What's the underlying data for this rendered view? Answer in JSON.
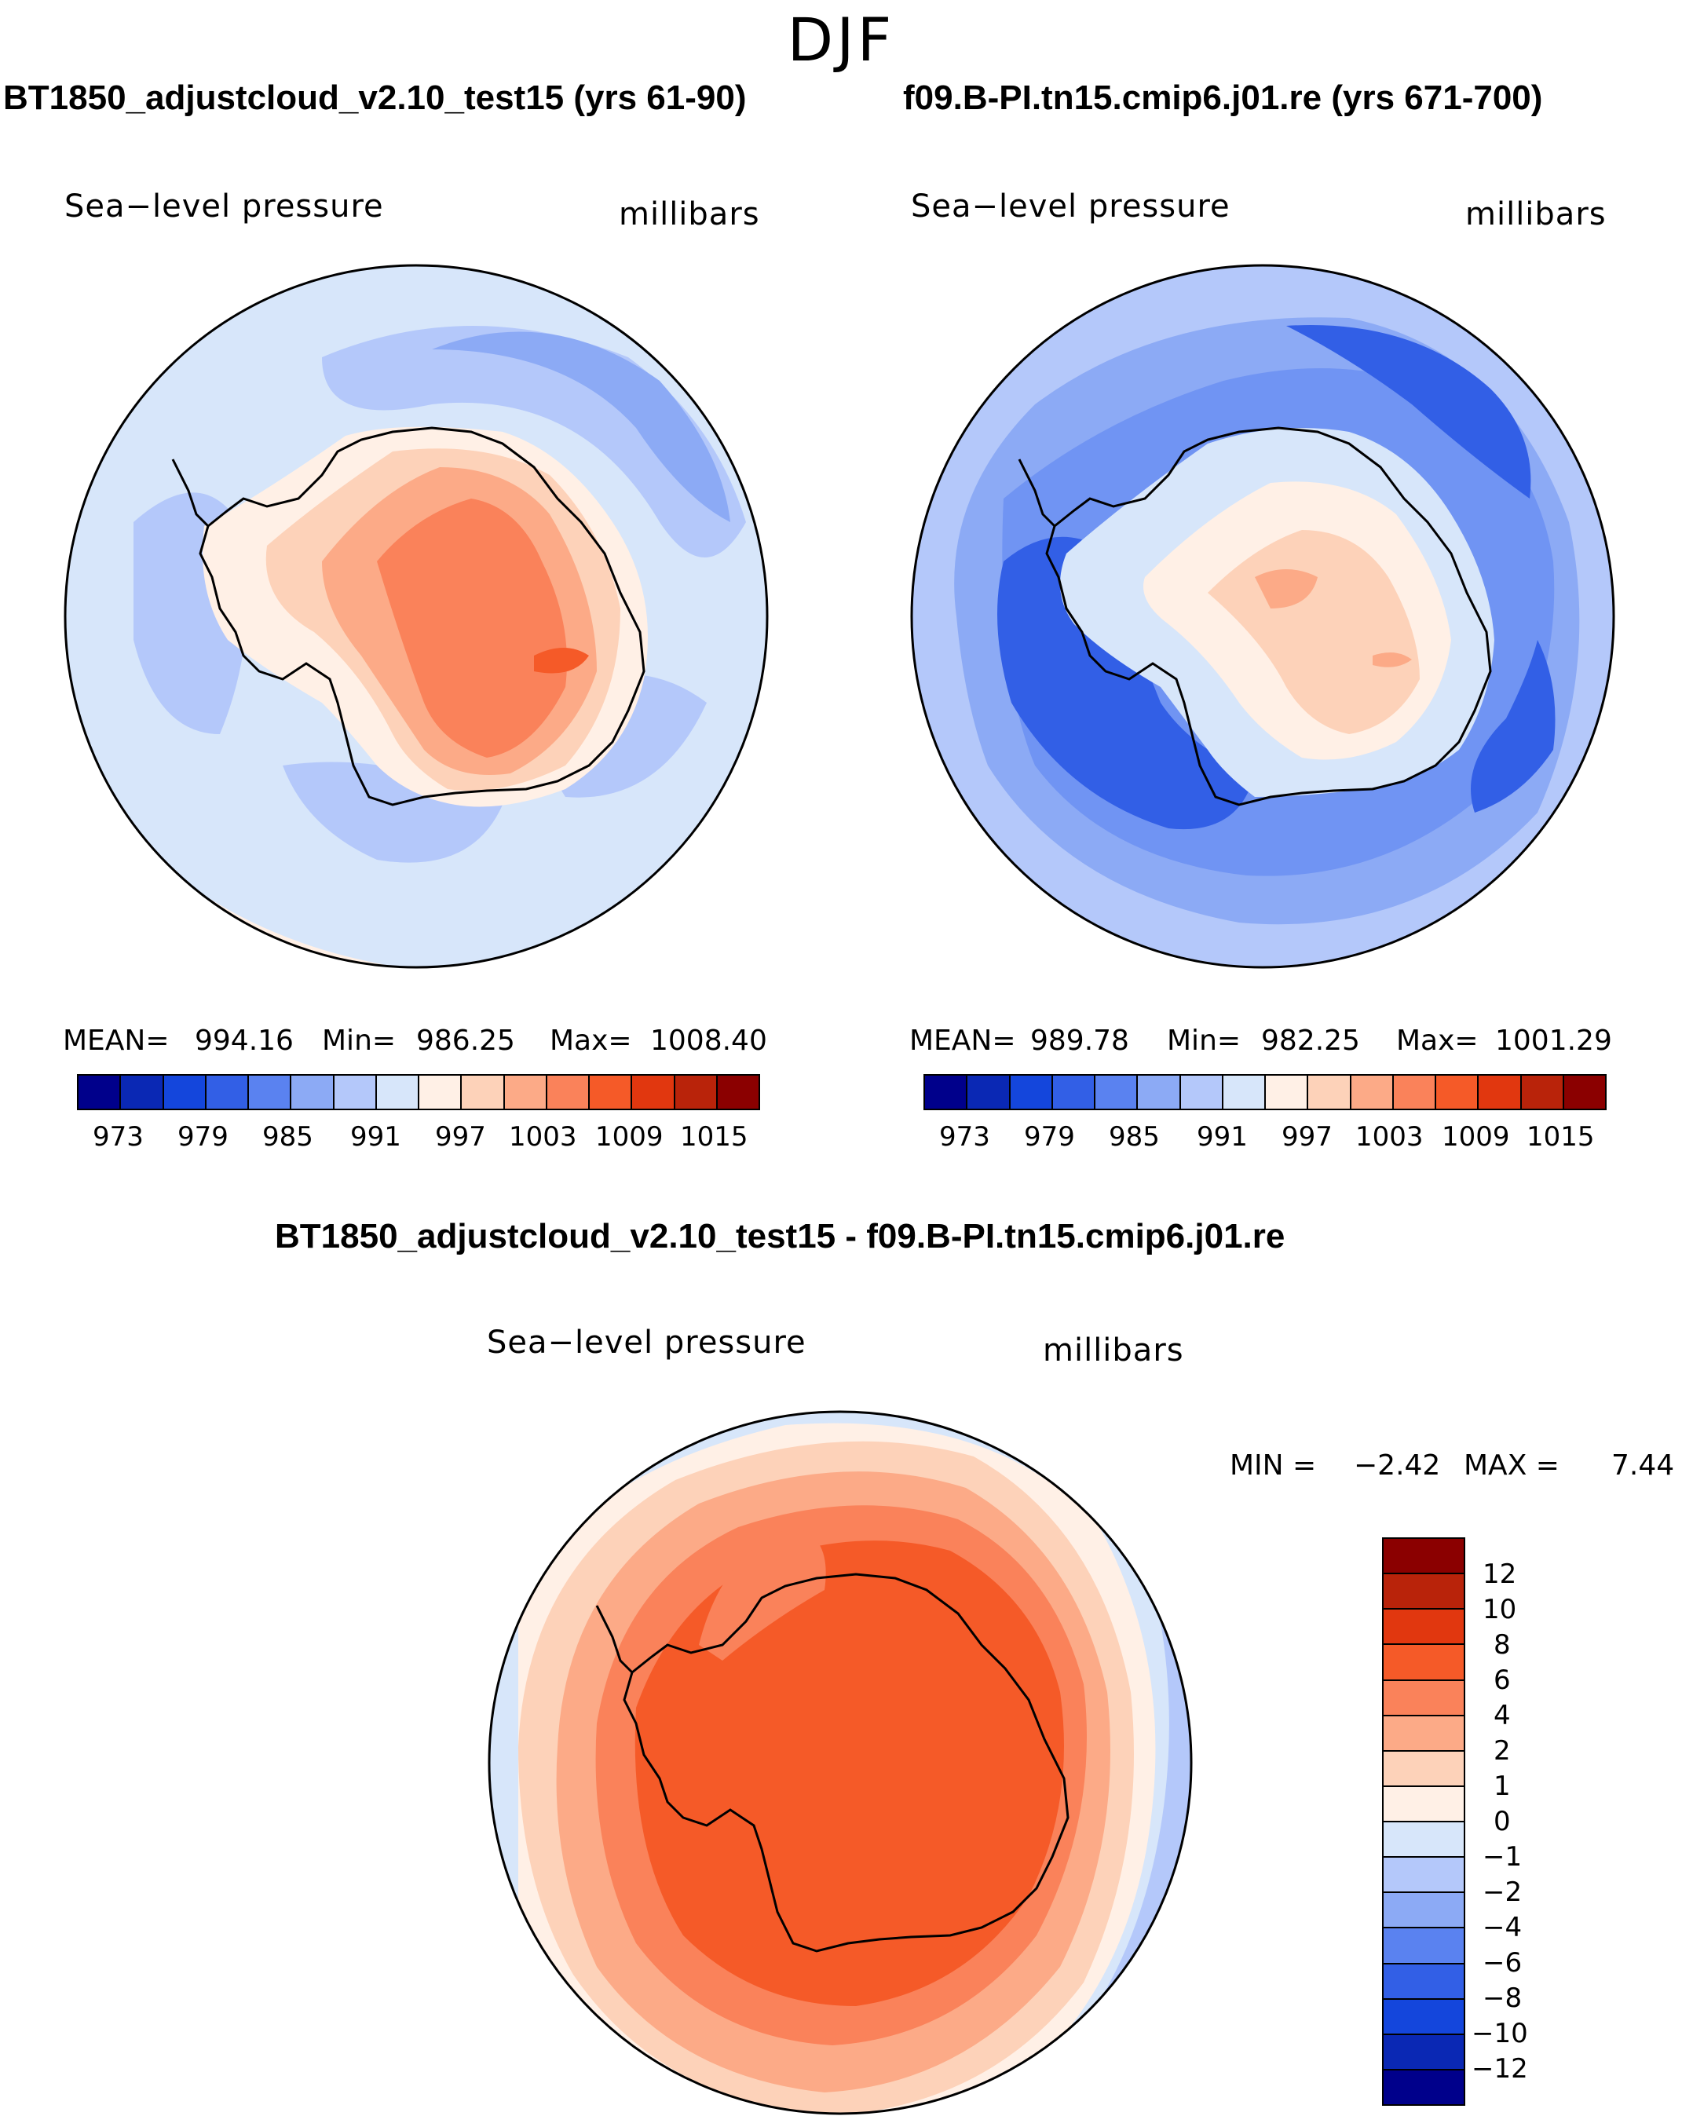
{
  "figure_title": "DJF",
  "panels": {
    "left": {
      "title": "BT1850_adjustcloud_v2.10_test15 (yrs 61-90)",
      "variable": "Sea−level pressure",
      "units": "millibars",
      "stats": {
        "mean_label": "MEAN=",
        "mean": "994.16",
        "min_label": "Min=",
        "min": "986.25",
        "max_label": "Max=",
        "max": "1008.40"
      }
    },
    "right": {
      "title": "f09.B-PI.tn15.cmip6.j01.re (yrs 671-700)",
      "variable": "Sea−level pressure",
      "units": "millibars",
      "stats": {
        "mean_label": "MEAN=",
        "mean": "989.78",
        "min_label": "Min=",
        "min": "982.25",
        "max_label": "Max=",
        "max": "1001.29"
      }
    },
    "diff": {
      "title": "BT1850_adjustcloud_v2.10_test15 - f09.B-PI.tn15.cmip6.j01.re",
      "variable": "Sea−level pressure",
      "units": "millibars",
      "stats": {
        "min_label": "MIN =",
        "min": "−2.42",
        "max_label": "MAX =",
        "max": "7.44"
      }
    }
  },
  "colorbar_abs": {
    "ticks": [
      "973",
      "979",
      "985",
      "991",
      "997",
      "1003",
      "1009",
      "1015"
    ],
    "colors": [
      "#00008b",
      "#0a28b4",
      "#1446dc",
      "#325fe6",
      "#5a82f0",
      "#8caaf5",
      "#b4c8fa",
      "#d7e6fa",
      "#fff0e6",
      "#fdd2b9",
      "#fcaa87",
      "#fa825a",
      "#f55a28",
      "#e1370f",
      "#b9230a",
      "#8b0000"
    ]
  },
  "colorbar_diff": {
    "ticks": [
      "12",
      "10",
      "8",
      "6",
      "4",
      "2",
      "1",
      "0",
      "−1",
      "−2",
      "−4",
      "−6",
      "−8",
      "−10",
      "−12"
    ],
    "colors": [
      "#8b0000",
      "#b9230a",
      "#e1370f",
      "#f55a28",
      "#fa825a",
      "#fcaa87",
      "#fdd2b9",
      "#fff0e6",
      "#d7e6fa",
      "#b4c8fa",
      "#8caaf5",
      "#5a82f0",
      "#325fe6",
      "#1446dc",
      "#0a28b4",
      "#00008b"
    ]
  }
}
